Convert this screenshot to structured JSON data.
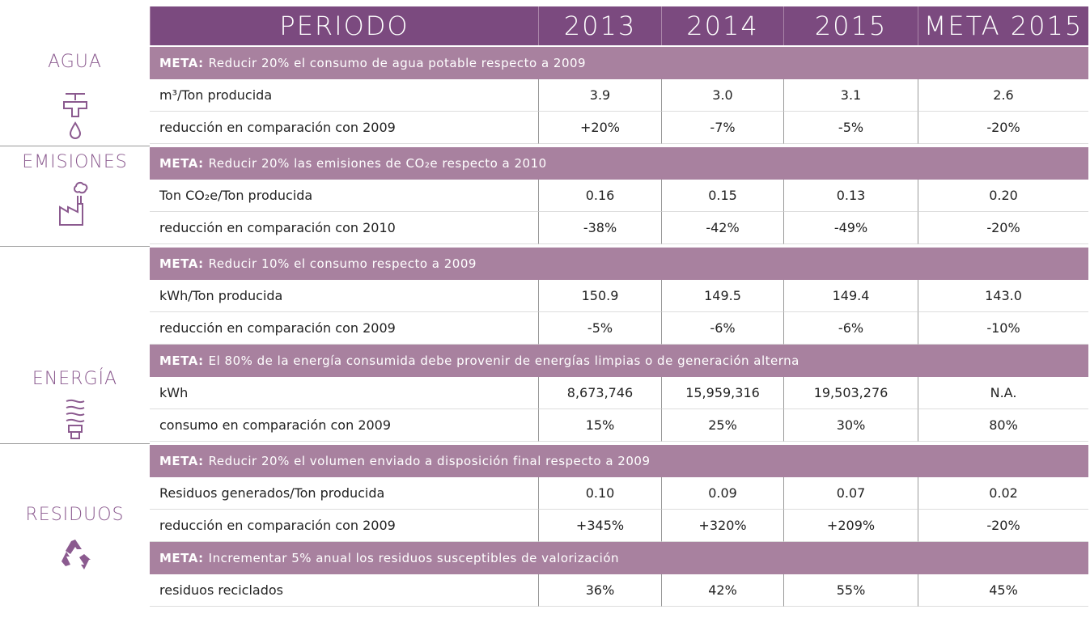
{
  "header": {
    "periodo": "PERIODO",
    "columns": [
      "2013",
      "2014",
      "2015",
      "META 2015"
    ]
  },
  "sections": [
    {
      "name": "AGUA",
      "groups": [
        {
          "meta_label": "META:",
          "meta_text": "Reducir 20% el consumo de agua potable respecto a 2009",
          "rows": [
            {
              "label": "m³/Ton producida",
              "values": [
                "3.9",
                "3.0",
                "3.1",
                "2.6"
              ]
            },
            {
              "label": "reducción en comparación con 2009",
              "values": [
                "+20%",
                "-7%",
                "-5%",
                "-20%"
              ]
            }
          ]
        }
      ]
    },
    {
      "name": "EMISIONES",
      "groups": [
        {
          "meta_label": "META:",
          "meta_text": "Reducir 20% las emisiones de CO₂e respecto a 2010",
          "rows": [
            {
              "label": "Ton CO₂e/Ton producida",
              "values": [
                "0.16",
                "0.15",
                "0.13",
                "0.20"
              ]
            },
            {
              "label": "reducción en comparación con 2010",
              "values": [
                "-38%",
                "-42%",
                "-49%",
                "-20%"
              ]
            }
          ]
        }
      ]
    },
    {
      "name": "ENERGÍA",
      "groups": [
        {
          "meta_label": "META:",
          "meta_text": "Reducir 10% el consumo respecto a 2009",
          "rows": [
            {
              "label": "kWh/Ton producida",
              "values": [
                "150.9",
                "149.5",
                "149.4",
                "143.0"
              ]
            },
            {
              "label": "reducción en comparación con 2009",
              "values": [
                "-5%",
                "-6%",
                "-6%",
                "-10%"
              ]
            }
          ]
        },
        {
          "meta_label": "META:",
          "meta_text": "El 80% de la energía consumida debe provenir de energías limpias o de generación alterna",
          "rows": [
            {
              "label": "kWh",
              "values": [
                "8,673,746",
                "15,959,316",
                "19,503,276",
                "N.A."
              ]
            },
            {
              "label": "consumo en comparación con 2009",
              "values": [
                "15%",
                "25%",
                "30%",
                "80%"
              ]
            }
          ]
        }
      ]
    },
    {
      "name": "RESIDUOS",
      "groups": [
        {
          "meta_label": "META:",
          "meta_text": "Reducir 20% el volumen enviado a disposición final respecto a 2009",
          "rows": [
            {
              "label": "Residuos generados/Ton producida",
              "values": [
                "0.10",
                "0.09",
                "0.07",
                "0.02"
              ]
            },
            {
              "label": "reducción en comparación con 2009",
              "values": [
                "+345%",
                "+320%",
                "+209%",
                "-20%"
              ]
            }
          ]
        },
        {
          "meta_label": "META:",
          "meta_text": "Incrementar 5% anual los residuos susceptibles de valorización",
          "rows": [
            {
              "label": "residuos reciclados",
              "values": [
                "36%",
                "42%",
                "55%",
                "45%"
              ]
            }
          ]
        }
      ]
    }
  ]
}
